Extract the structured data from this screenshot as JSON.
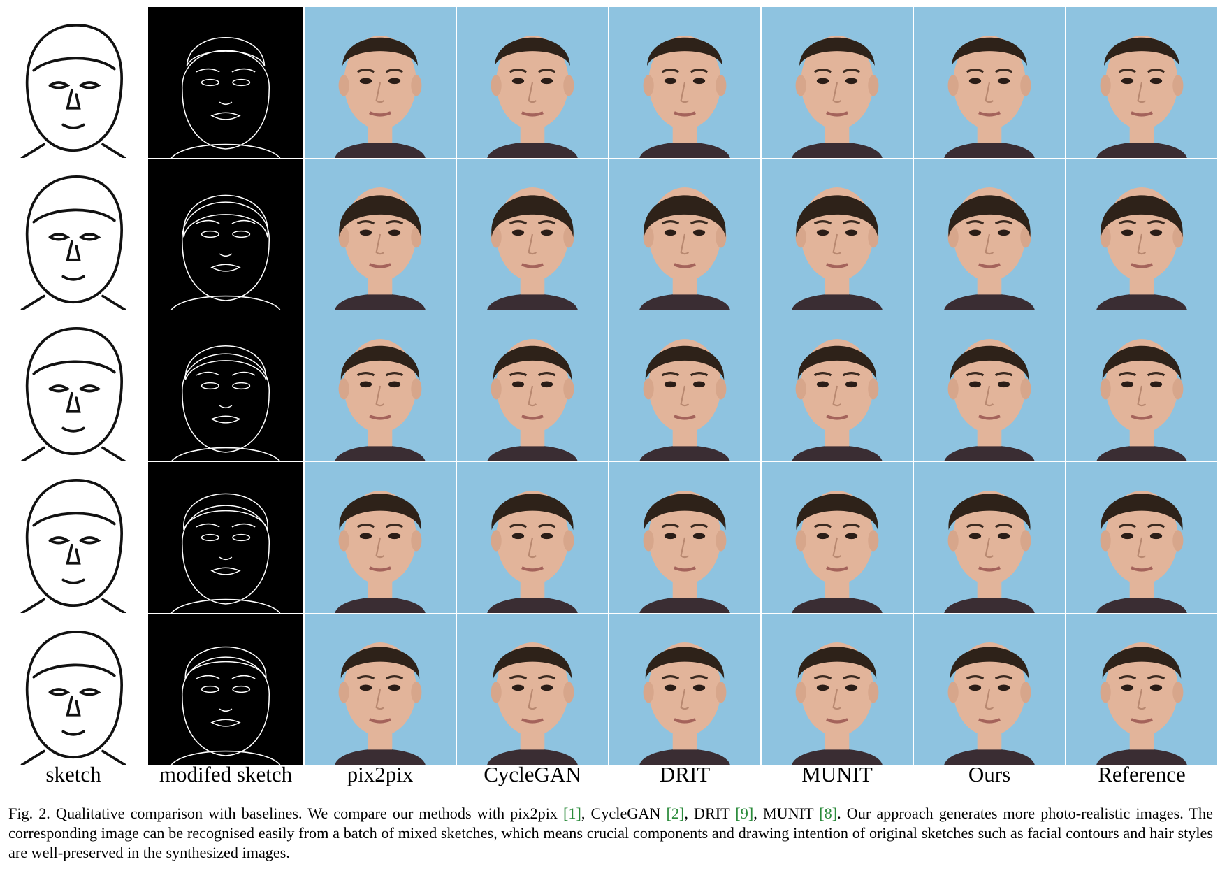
{
  "figure": {
    "columns": [
      {
        "id": "sketch",
        "label": "sketch",
        "kind": "sketch"
      },
      {
        "id": "modified",
        "label": "modifed sketch",
        "kind": "edge"
      },
      {
        "id": "pix2pix",
        "label": "pix2pix",
        "kind": "photo"
      },
      {
        "id": "cyclegan",
        "label": "CycleGAN",
        "kind": "photo"
      },
      {
        "id": "drit",
        "label": "DRIT",
        "kind": "photo"
      },
      {
        "id": "munit",
        "label": "MUNIT",
        "kind": "photo"
      },
      {
        "id": "ours",
        "label": "Ours",
        "kind": "photo"
      },
      {
        "id": "reference",
        "label": "Reference",
        "kind": "photo"
      }
    ],
    "rows": 5,
    "colors": {
      "photo_background": "#8ec3e0",
      "skin": "#e2b49a",
      "hair": "#2e2219",
      "edge_background": "#000000",
      "edge_stroke": "#ffffff",
      "sketch_stroke": "#111111"
    }
  },
  "caption": {
    "prefix": "Fig. 2.  Qualitative comparison with baselines. We compare our methods with pix2pix ",
    "ref1": "[1]",
    "t1": ", CycleGAN ",
    "ref2": "[2]",
    "t2": ", DRIT ",
    "ref3": "[9]",
    "t3": ", MUNIT ",
    "ref4": "[8]",
    "suffix": ". Our approach generates more photo-realistic images. The corresponding image can be recognised easily from a batch of mixed sketches, which means crucial components and drawing intention of original sketches such as facial contours and hair styles are well-preserved in the synthesized images."
  }
}
